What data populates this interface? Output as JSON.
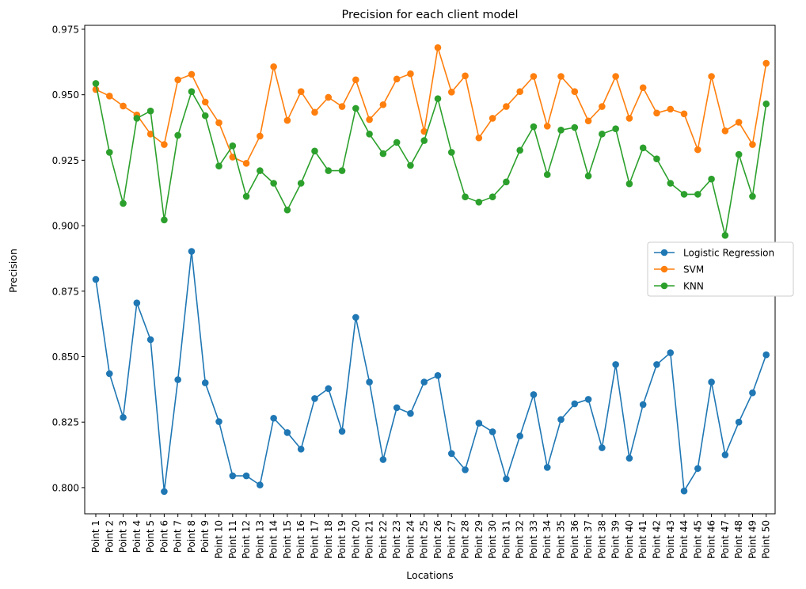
{
  "chart_data": {
    "type": "line",
    "title": "Precision for each client model",
    "xlabel": "Locations",
    "ylabel": "Precision",
    "ylim": [
      0.79,
      0.9765
    ],
    "yticks": [
      0.8,
      0.825,
      0.85,
      0.875,
      0.9,
      0.925,
      0.95,
      0.975
    ],
    "ytick_labels": [
      "0.800",
      "0.825",
      "0.850",
      "0.875",
      "0.900",
      "0.925",
      "0.950",
      "0.975"
    ],
    "legend_position": "center-right",
    "grid": false,
    "categories": [
      "Point 1",
      "Point 2",
      "Point 3",
      "Point 4",
      "Point 5",
      "Point 6",
      "Point 7",
      "Point 8",
      "Point 9",
      "Point 10",
      "Point 11",
      "Point 12",
      "Point 13",
      "Point 14",
      "Point 15",
      "Point 16",
      "Point 17",
      "Point 18",
      "Point 19",
      "Point 20",
      "Point 21",
      "Point 22",
      "Point 23",
      "Point 24",
      "Point 25",
      "Point 26",
      "Point 27",
      "Point 28",
      "Point 29",
      "Point 30",
      "Point 31",
      "Point 32",
      "Point 33",
      "Point 34",
      "Point 35",
      "Point 36",
      "Point 37",
      "Point 38",
      "Point 39",
      "Point 40",
      "Point 41",
      "Point 42",
      "Point 43",
      "Point 44",
      "Point 45",
      "Point 46",
      "Point 47",
      "Point 48",
      "Point 49",
      "Point 50"
    ],
    "series": [
      {
        "name": "Logistic Regression",
        "color": "#1f77b4",
        "values": [
          0.8795,
          0.8435,
          0.8268,
          0.8705,
          0.8565,
          0.7985,
          0.8412,
          0.8902,
          0.84,
          0.8252,
          0.8045,
          0.8045,
          0.801,
          0.8265,
          0.821,
          0.8147,
          0.834,
          0.8378,
          0.8215,
          0.865,
          0.8403,
          0.8107,
          0.8305,
          0.8283,
          0.8403,
          0.8428,
          0.813,
          0.8068,
          0.8246,
          0.8213,
          0.8033,
          0.8197,
          0.8355,
          0.8077,
          0.826,
          0.832,
          0.8337,
          0.8152,
          0.847,
          0.8112,
          0.8317,
          0.847,
          0.8515,
          0.7987,
          0.8073,
          0.8403,
          0.8125,
          0.825,
          0.8362,
          0.8507
        ]
      },
      {
        "name": "SVM",
        "color": "#ff7f0e",
        "values": [
          0.952,
          0.9495,
          0.9457,
          0.9423,
          0.935,
          0.931,
          0.9557,
          0.9578,
          0.9472,
          0.9393,
          0.9262,
          0.9238,
          0.9342,
          0.9607,
          0.9402,
          0.9512,
          0.9433,
          0.949,
          0.9455,
          0.9557,
          0.9405,
          0.9462,
          0.956,
          0.958,
          0.936,
          0.968,
          0.951,
          0.9572,
          0.9335,
          0.941,
          0.9455,
          0.9512,
          0.957,
          0.938,
          0.957,
          0.9512,
          0.94,
          0.9455,
          0.957,
          0.941,
          0.9527,
          0.943,
          0.9445,
          0.9427,
          0.929,
          0.957,
          0.9362,
          0.9395,
          0.931,
          0.962
        ]
      },
      {
        "name": "KNN",
        "color": "#2ca02c",
        "values": [
          0.9543,
          0.928,
          0.9085,
          0.941,
          0.9438,
          0.9022,
          0.9345,
          0.9512,
          0.942,
          0.9228,
          0.9305,
          0.9112,
          0.921,
          0.9162,
          0.906,
          0.9162,
          0.9285,
          0.921,
          0.921,
          0.9448,
          0.935,
          0.9275,
          0.9318,
          0.923,
          0.9325,
          0.9485,
          0.928,
          0.911,
          0.909,
          0.911,
          0.9167,
          0.9288,
          0.9378,
          0.9195,
          0.9365,
          0.9375,
          0.919,
          0.935,
          0.937,
          0.916,
          0.9297,
          0.9255,
          0.9162,
          0.912,
          0.912,
          0.9178,
          0.8963,
          0.9272,
          0.9112,
          0.9465
        ]
      }
    ]
  }
}
